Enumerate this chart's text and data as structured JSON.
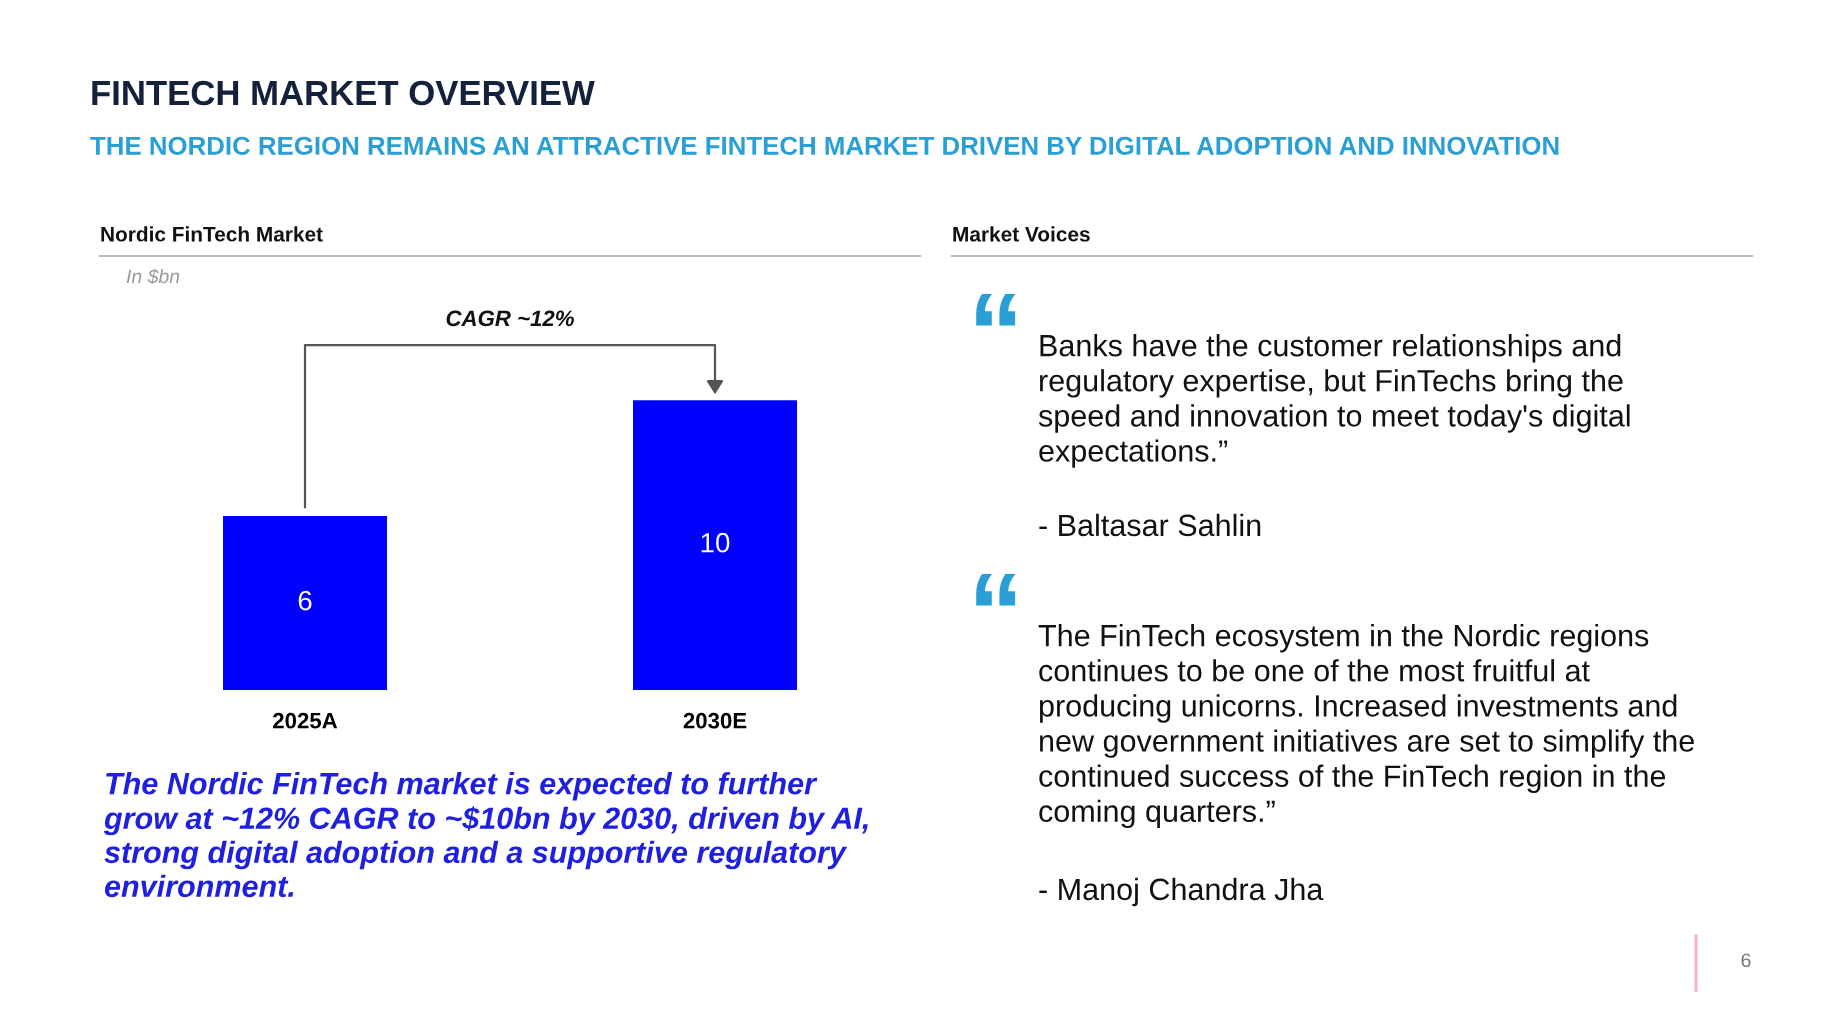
{
  "chart_data": [
    {
      "type": "other",
      "title": "FINTECH MARKET OVERVIEW",
      "subtitle": "THE NORDIC REGION REMAINS AN ATTRACTIVE FINTECH MARKET DRIVEN BY DIGITAL ADOPTION AND INNOVATION",
      "annotations": [
        "6"
      ]
    },
    {
      "type": "bar",
      "title": "Nordic FinTech Market",
      "subtitle": "In $bn",
      "categories": [
        "2025A",
        "2030E"
      ],
      "values": [
        6,
        10
      ],
      "color": "#0000ff",
      "data_labels": true,
      "tick_labels": "x",
      "annotations": [
        "CAGR ~12%",
        "The Nordic FinTech market is expected to further\ngrow at ~12% CAGR to ~$10bn by 2030, driven by AI,\nstrong digital adoption and a supportive regulatory\nenvironment."
      ]
    },
    {
      "type": "other",
      "title": "Market Voices",
      "annotations": [
        "“",
        "Banks have the customer relationships and\nregulatory expertise, but FinTechs bring the\nspeed and innovation to meet today's digital\nexpectations.”",
        "- Baltasar Sahlin",
        "“",
        "The FinTech ecosystem in the Nordic regions\ncontinues to be one of the most fruitful at\nproducing unicorns. Increased investments and\nnew government initiatives are set to simplify the\ncontinued success of the FinTech region in the\ncoming quarters.”",
        "- Manoj Chandra Jha"
      ]
    }
  ]
}
